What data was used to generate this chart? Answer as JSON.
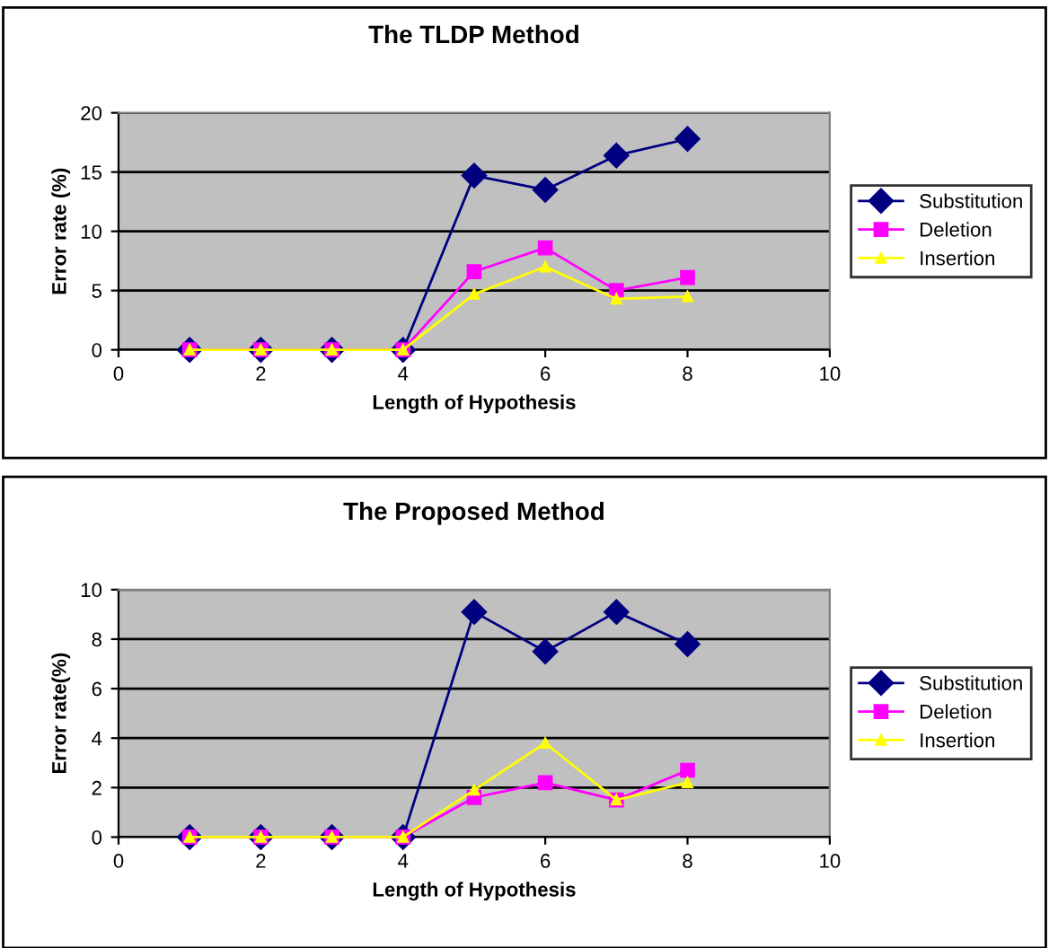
{
  "chart_data": [
    {
      "type": "line",
      "title": "The TLDP Method",
      "xlabel": "Length of Hypothesis",
      "ylabel": "Error rate (%)",
      "x": [
        1,
        2,
        3,
        4,
        5,
        6,
        7,
        8
      ],
      "xlim": [
        0,
        10
      ],
      "xticks": [
        0,
        2,
        4,
        6,
        8,
        10
      ],
      "ylim": [
        0,
        20
      ],
      "yticks": [
        0,
        5,
        10,
        15,
        20
      ],
      "grid": "y",
      "legend": "right",
      "line_style": "solid",
      "series": [
        {
          "name": "Substitution",
          "color": "#000080",
          "marker": "diamond",
          "values": [
            0,
            0,
            0,
            0,
            14.7,
            13.5,
            16.4,
            17.8
          ]
        },
        {
          "name": "Deletion",
          "color": "#ff00ff",
          "marker": "square",
          "values": [
            0,
            0,
            0,
            0,
            6.6,
            8.6,
            5.0,
            6.1
          ]
        },
        {
          "name": "Insertion",
          "color": "#ffff00",
          "marker": "triangle",
          "values": [
            0,
            0,
            0,
            0,
            4.7,
            7.0,
            4.3,
            4.5
          ]
        }
      ]
    },
    {
      "type": "line",
      "title": "The Proposed Method",
      "xlabel": "Length of Hypothesis",
      "ylabel": "Error rate(%)",
      "x": [
        1,
        2,
        3,
        4,
        5,
        6,
        7,
        8
      ],
      "xlim": [
        0,
        10
      ],
      "xticks": [
        0,
        2,
        4,
        6,
        8,
        10
      ],
      "ylim": [
        0,
        10
      ],
      "yticks": [
        0,
        2,
        4,
        6,
        8,
        10
      ],
      "grid": "y",
      "legend": "right",
      "line_style": "solid",
      "series": [
        {
          "name": "Substitution",
          "color": "#000080",
          "marker": "diamond",
          "values": [
            0,
            0,
            0,
            0,
            9.1,
            7.5,
            9.1,
            7.8
          ]
        },
        {
          "name": "Deletion",
          "color": "#ff00ff",
          "marker": "square",
          "values": [
            0,
            0,
            0,
            0,
            1.6,
            2.2,
            1.5,
            2.7
          ]
        },
        {
          "name": "Insertion",
          "color": "#ffff00",
          "marker": "triangle",
          "values": [
            0,
            0,
            0,
            0,
            1.9,
            3.8,
            1.5,
            2.2
          ]
        }
      ]
    }
  ]
}
